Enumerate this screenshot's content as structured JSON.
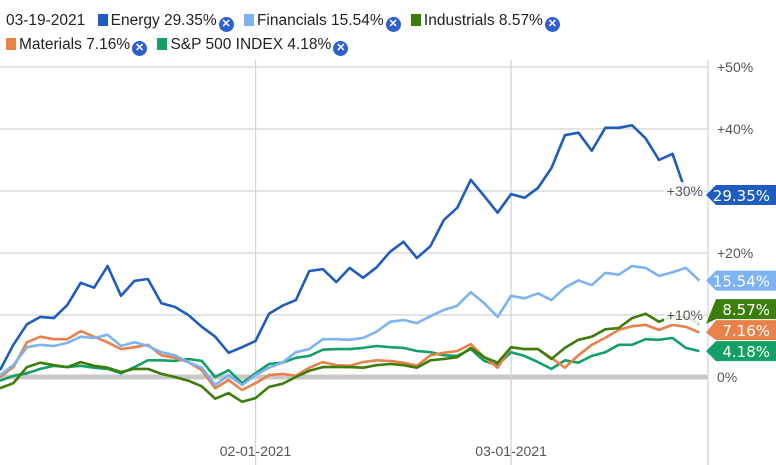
{
  "legend": {
    "date": "03-19-2021",
    "items": [
      {
        "name": "Energy",
        "value": "29.35%",
        "color": "#1f5cbf"
      },
      {
        "name": "Financials",
        "value": "15.54%",
        "color": "#7db3f2"
      },
      {
        "name": "Industrials",
        "value": "8.57%",
        "color": "#3d7d0c"
      },
      {
        "name": "Materials",
        "value": "7.16%",
        "color": "#e8814a"
      },
      {
        "name": "S&P 500 INDEX",
        "value": "4.18%",
        "color": "#12a067"
      }
    ],
    "remove_icon": "close-circle-icon"
  },
  "chart_data": {
    "type": "line",
    "x": [
      "01-04-2021",
      "01-05-2021",
      "01-06-2021",
      "01-07-2021",
      "01-08-2021",
      "01-11-2021",
      "01-12-2021",
      "01-13-2021",
      "01-14-2021",
      "01-15-2021",
      "01-19-2021",
      "01-20-2021",
      "01-21-2021",
      "01-22-2021",
      "01-25-2021",
      "01-26-2021",
      "01-27-2021",
      "01-28-2021",
      "01-29-2021",
      "02-01-2021",
      "02-02-2021",
      "02-03-2021",
      "02-04-2021",
      "02-05-2021",
      "02-08-2021",
      "02-09-2021",
      "02-10-2021",
      "02-11-2021",
      "02-12-2021",
      "02-16-2021",
      "02-17-2021",
      "02-18-2021",
      "02-19-2021",
      "02-22-2021",
      "02-23-2021",
      "02-24-2021",
      "02-25-2021",
      "02-26-2021",
      "03-01-2021",
      "03-02-2021",
      "03-03-2021",
      "03-04-2021",
      "03-05-2021",
      "03-08-2021",
      "03-09-2021",
      "03-10-2021",
      "03-11-2021",
      "03-12-2021",
      "03-15-2021",
      "03-16-2021",
      "03-17-2021",
      "03-18-2021",
      "03-19-2021"
    ],
    "x_ticks": [
      "02-01-2021",
      "03-01-2021"
    ],
    "y_ticks": [
      "0%",
      "+10%",
      "+20%",
      "+30%",
      "+40%",
      "+50%"
    ],
    "y_tick_values": [
      0,
      10,
      20,
      30,
      40,
      50
    ],
    "ylim": [
      -10,
      50
    ],
    "y_unit": "%",
    "grid": true,
    "legend": "top",
    "series": [
      {
        "name": "Energy",
        "color": "#1f5cbf",
        "end_label": "29.35%",
        "values": [
          1.1,
          5.2,
          8.5,
          9.7,
          9.5,
          11.6,
          15.2,
          14.4,
          17.9,
          13.1,
          15.5,
          15.8,
          11.9,
          11.3,
          10.0,
          8.1,
          6.5,
          3.9,
          4.8,
          5.8,
          10.2,
          11.5,
          12.4,
          17.1,
          17.4,
          15.3,
          17.6,
          16.0,
          17.7,
          20.2,
          21.8,
          19.2,
          21.1,
          25.3,
          27.3,
          31.8,
          29.2,
          26.5,
          29.5,
          28.9,
          30.5,
          33.7,
          39.0,
          39.4,
          36.5,
          40.2,
          40.2,
          40.6,
          38.5,
          35.0,
          36.0,
          29.8,
          29.35
        ]
      },
      {
        "name": "Financials",
        "color": "#7db3f2",
        "end_label": "15.54%",
        "values": [
          0.3,
          1.9,
          4.8,
          5.2,
          5.0,
          5.5,
          6.5,
          6.3,
          6.8,
          5.0,
          5.6,
          5.0,
          4.0,
          3.5,
          2.4,
          1.5,
          -1.3,
          0.3,
          -1.3,
          0.3,
          1.5,
          2.3,
          4.0,
          4.5,
          6.1,
          6.1,
          6.0,
          6.3,
          7.3,
          8.9,
          9.2,
          8.7,
          9.8,
          10.8,
          11.5,
          13.7,
          11.9,
          9.7,
          13.1,
          12.7,
          13.5,
          12.4,
          14.4,
          15.6,
          14.8,
          16.8,
          16.5,
          17.9,
          17.6,
          16.3,
          16.9,
          17.6,
          15.54
        ]
      },
      {
        "name": "Industrials",
        "color": "#3d7d0c",
        "end_label": "8.57%",
        "values": [
          -1.8,
          -1.0,
          1.6,
          2.3,
          1.9,
          1.6,
          2.4,
          1.8,
          1.5,
          0.8,
          1.3,
          1.3,
          0.5,
          0,
          -0.6,
          -1.5,
          -3.5,
          -2.6,
          -4.0,
          -3.4,
          -1.6,
          -1.1,
          0,
          1.0,
          1.6,
          1.6,
          1.6,
          1.5,
          1.9,
          2.1,
          1.9,
          1.5,
          2.7,
          2.9,
          3.2,
          4.7,
          3.2,
          2.3,
          4.8,
          4.5,
          4.5,
          2.9,
          4.7,
          6.0,
          6.5,
          7.7,
          7.9,
          9.5,
          10.2,
          8.9,
          9.8,
          9.7,
          8.57
        ]
      },
      {
        "name": "Materials",
        "color": "#e8814a",
        "end_label": "7.16%",
        "values": [
          0,
          1.6,
          5.6,
          6.5,
          6.1,
          6.1,
          7.4,
          6.5,
          5.6,
          4.5,
          4.8,
          5.2,
          3.5,
          3.1,
          2.4,
          1.1,
          -1.8,
          -0.5,
          -2.1,
          -1.0,
          0.3,
          0.5,
          0.2,
          1.5,
          2.4,
          1.9,
          1.8,
          2.4,
          2.7,
          2.6,
          2.3,
          1.8,
          3.5,
          3.9,
          4.2,
          5.3,
          3.2,
          1.5,
          4.8,
          4.5,
          4.5,
          3.1,
          1.5,
          3.5,
          5.2,
          6.3,
          7.6,
          8.2,
          8.4,
          7.6,
          8.4,
          8.1,
          7.16
        ]
      },
      {
        "name": "S&P 500 INDEX",
        "color": "#12a067",
        "end_label": "4.18%",
        "values": [
          -0.6,
          0.2,
          0.6,
          1.3,
          1.8,
          1.6,
          1.8,
          1.5,
          1.3,
          0.6,
          1.6,
          2.7,
          2.7,
          2.6,
          2.9,
          2.6,
          0,
          1.1,
          -1.0,
          0.6,
          2.1,
          2.3,
          3.1,
          3.4,
          4.4,
          4.5,
          4.5,
          4.7,
          5.0,
          4.8,
          4.7,
          4.2,
          4.0,
          3.5,
          3.4,
          4.5,
          2.6,
          1.9,
          4.0,
          3.4,
          2.4,
          1.3,
          2.7,
          2.3,
          3.4,
          4.0,
          5.2,
          5.2,
          6.1,
          6.0,
          6.3,
          4.7,
          4.18
        ]
      }
    ]
  }
}
